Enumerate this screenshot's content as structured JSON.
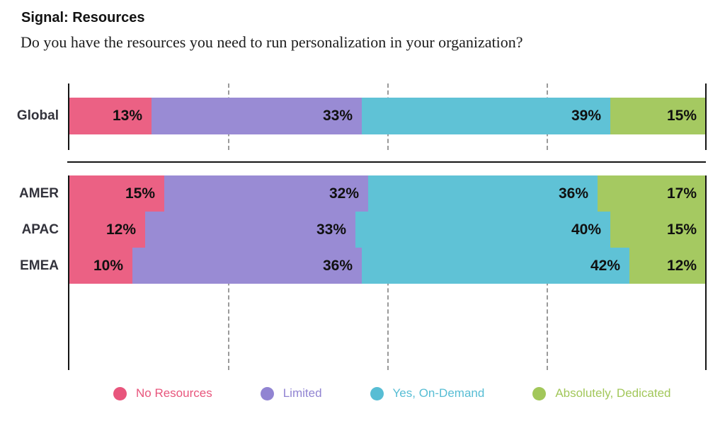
{
  "header": {
    "title": "Signal: Resources",
    "question": "Do you have the resources you need to run personalization in your organization?"
  },
  "chart_data": {
    "type": "bar",
    "orientation": "horizontal",
    "stacked": true,
    "unit": "%",
    "title": "Signal: Resources",
    "subtitle": "Do you have the resources you need to run personalization in your organization?",
    "categories": [
      "Global",
      "AMER",
      "APAC",
      "EMEA"
    ],
    "groups": [
      [
        "Global"
      ],
      [
        "AMER",
        "APAC",
        "EMEA"
      ]
    ],
    "series": [
      {
        "name": "No Resources",
        "color": "#EB6184",
        "values": [
          13,
          15,
          12,
          10
        ]
      },
      {
        "name": "Limited",
        "color": "#998BD4",
        "values": [
          33,
          32,
          33,
          36
        ]
      },
      {
        "name": "Yes, On-Demand",
        "color": "#5FC2D6",
        "values": [
          39,
          36,
          40,
          42
        ]
      },
      {
        "name": "Absolutely, Dedicated",
        "color": "#A5C961",
        "values": [
          15,
          17,
          15,
          12
        ]
      }
    ],
    "xlim": [
      0,
      100
    ],
    "gridlines_percent": [
      25,
      50,
      75
    ],
    "grid": "dashed-vertical",
    "legend_position": "bottom",
    "value_labels": "inside-right"
  },
  "legend": {
    "items": [
      {
        "label": "No Resources",
        "color": "#E8557C"
      },
      {
        "label": "Limited",
        "color": "#9184D2"
      },
      {
        "label": "Yes, On-Demand",
        "color": "#57BDD4"
      },
      {
        "label": "Absolutely, Dedicated",
        "color": "#A2C75A"
      }
    ]
  }
}
